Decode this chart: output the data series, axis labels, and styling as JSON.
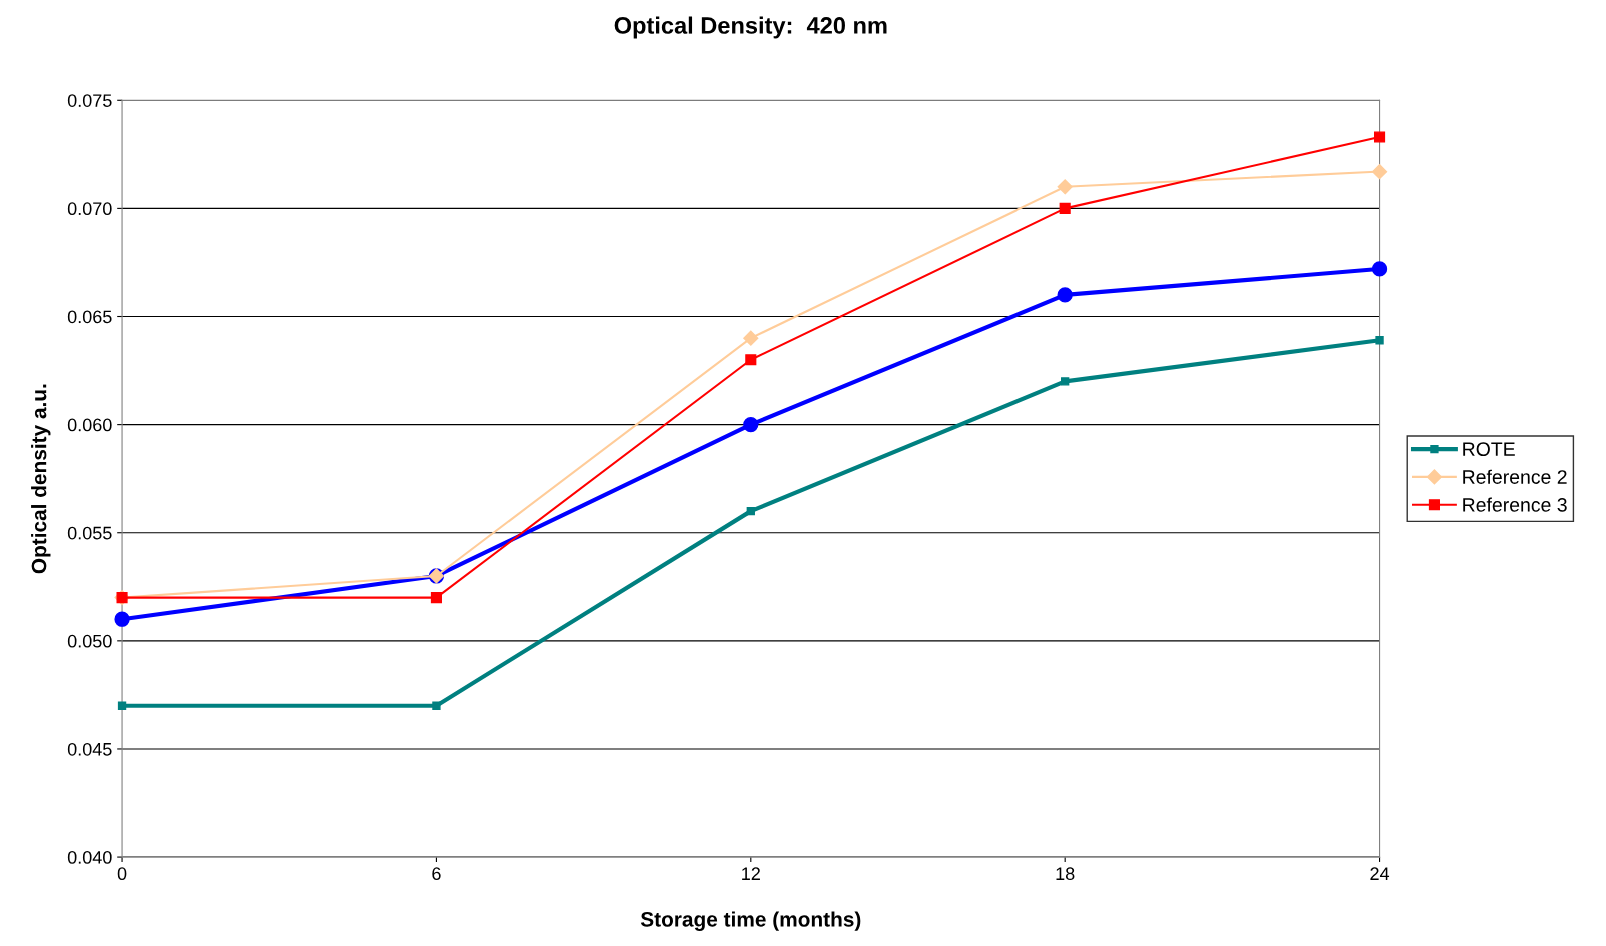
{
  "chart_data": {
    "type": "line",
    "title": "Optical Density:  420 nm",
    "xlabel": "Storage time (months)",
    "ylabel": "Optical density a.u.",
    "x": [
      0,
      6,
      12,
      18,
      24
    ],
    "xlim": [
      0,
      24
    ],
    "xticks": [
      0,
      6,
      12,
      18,
      24
    ],
    "ylim": [
      0.04,
      0.075
    ],
    "yticks": [
      {
        "value": 0.04,
        "label": "0.040"
      },
      {
        "value": 0.045,
        "label": "0.045"
      },
      {
        "value": 0.05,
        "label": "0.050"
      },
      {
        "value": 0.055,
        "label": "0.055"
      },
      {
        "value": 0.06,
        "label": "0.060"
      },
      {
        "value": 0.065,
        "label": "0.065"
      },
      {
        "value": 0.07,
        "label": "0.070"
      },
      {
        "value": 0.075,
        "label": "0.075"
      }
    ],
    "grid": "y",
    "legend": "right",
    "series": [
      {
        "name": "ROTE",
        "color": "#008080",
        "marker": "square",
        "values": [
          0.047,
          0.047,
          0.056,
          0.062,
          0.0639
        ]
      },
      {
        "color": "#0000ff",
        "marker": "circle",
        "values": [
          0.051,
          0.053,
          0.06,
          0.066,
          0.0672
        ]
      },
      {
        "name": "Reference 2",
        "color": "#ffcc99",
        "marker": "diamond",
        "values": [
          0.052,
          0.053,
          0.064,
          0.071,
          0.0717
        ]
      },
      {
        "name": "Reference 3",
        "color": "#ff0000",
        "marker": "square",
        "values": [
          0.052,
          0.052,
          0.063,
          0.07,
          0.0733
        ]
      }
    ]
  }
}
